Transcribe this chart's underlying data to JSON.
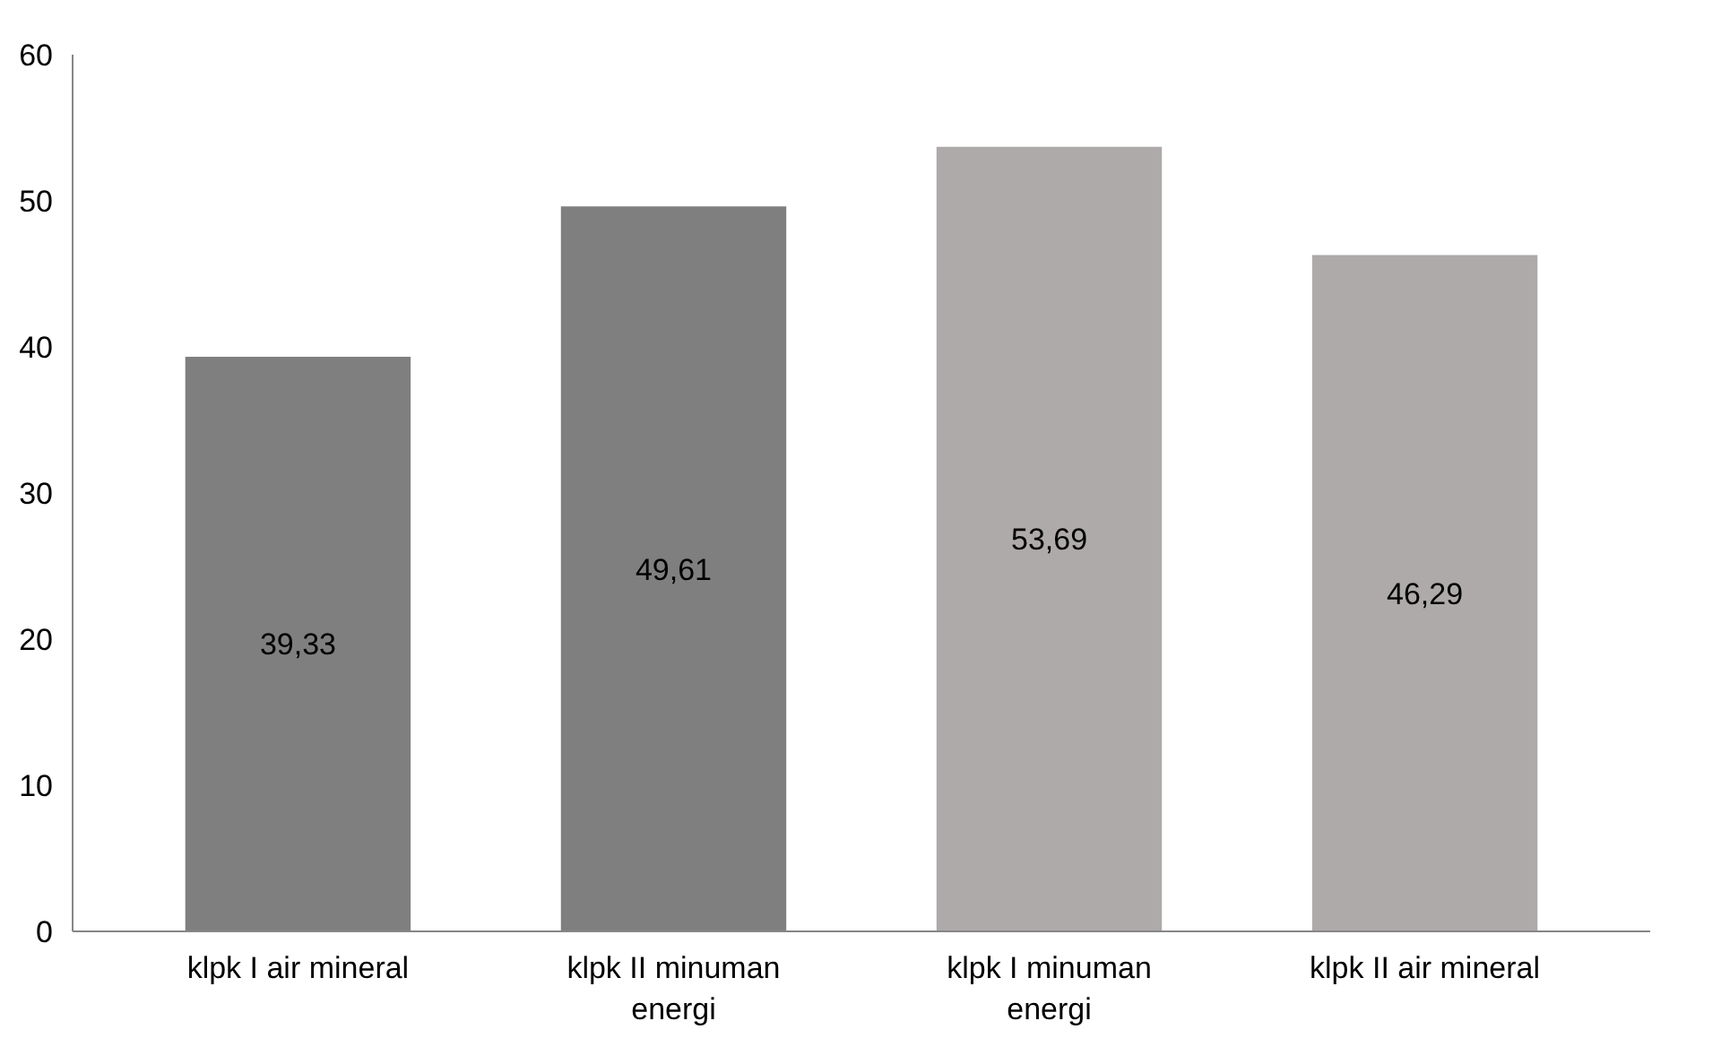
{
  "chart_data": {
    "type": "bar",
    "categories": [
      "klpk I air mineral",
      "klpk II minuman energi",
      "klpk I minuman energi",
      "klpk II air mineral"
    ],
    "values": [
      39.33,
      49.61,
      53.69,
      46.29
    ],
    "colors": [
      "#7f7f7f",
      "#7f7f7f",
      "#aeaaaa",
      "#aeaaaa"
    ],
    "value_labels": [
      "39,33",
      "49,61",
      "53,69",
      "46,29"
    ],
    "ylim": [
      0,
      60
    ],
    "yticks": [
      0,
      10,
      20,
      30,
      40,
      50,
      60
    ],
    "grid": false
  }
}
